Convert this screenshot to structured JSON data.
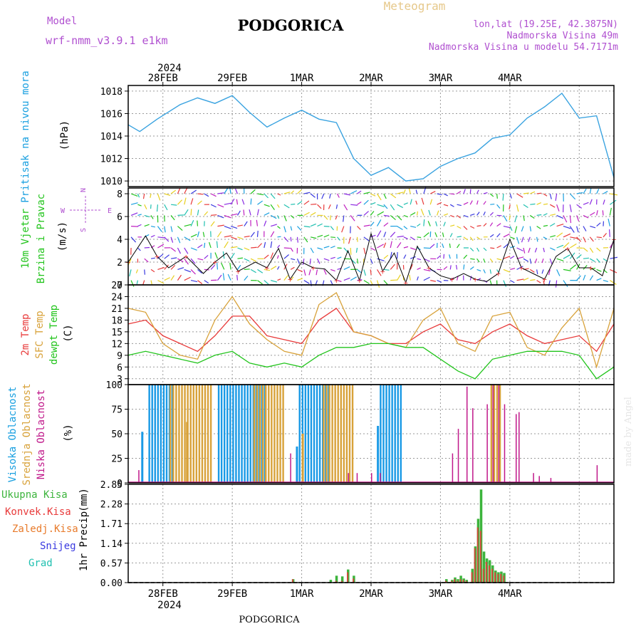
{
  "header": {
    "model_label": "Model",
    "model_name": "wrf-nmm_v3.9.1  e1km",
    "title": "PODGORICA",
    "meteogram_label": "Meteogram",
    "lonlat": "lon,lat (19.25E, 42.3875N)",
    "elevation": "Nadmorska Visina 49m",
    "model_elevation": "Nadmorska Visina u modelu 54.7171m",
    "year": "2024",
    "footer_location": "PODGORICA",
    "watermark": "made by Angel"
  },
  "colors": {
    "pressure": "#3aa3e0",
    "temp2m": "#e83a3a",
    "sfc_temp": "#d8a23a",
    "dewpoint": "#22c41c",
    "high_cloud": "#1a9ae6",
    "mid_cloud": "#d8a23a",
    "low_cloud": "#c0188a",
    "total_precip": "#3cb43c",
    "conv_precip": "#e83a3a",
    "frozen_precip": "#e87a2a",
    "snow": "#3a3ae0",
    "graupel": "#20c0b0",
    "label_purple": "#b050d0",
    "label_cyan": "#1aa0e0",
    "label_green": "#22c41c",
    "label_red": "#e83a3a",
    "label_orange": "#d8a23a",
    "label_magenta": "#c0188a",
    "meteogram_color": "#e6c88a"
  },
  "chart_data": [
    {
      "type": "line",
      "panel": "pressure",
      "ylabel": "Pritisak na nivou mora",
      "unit": "(hPa)",
      "ylim": [
        1009.5,
        1018.5
      ],
      "yticks": [
        1010,
        1012,
        1014,
        1016,
        1018
      ],
      "x_hours": [
        0,
        4,
        10,
        18,
        24,
        30,
        36,
        42,
        48,
        54,
        60,
        66,
        72,
        78,
        84,
        90,
        96,
        102,
        108,
        114,
        120,
        126,
        132,
        138,
        144,
        150,
        156,
        162,
        168
      ],
      "series": [
        {
          "name": "Pritisak na nivou mora",
          "values": [
            1015.0,
            1014.4,
            1015.5,
            1016.8,
            1017.4,
            1016.9,
            1017.6,
            1016.1,
            1014.8,
            1015.6,
            1016.3,
            1015.5,
            1015.2,
            1012.0,
            1010.5,
            1011.2,
            1010.0,
            1010.2,
            1011.3,
            1012.0,
            1012.5,
            1013.8,
            1014.1,
            1015.6,
            1016.6,
            1017.8,
            1015.6,
            1015.8,
            1010.3
          ]
        }
      ]
    },
    {
      "type": "line",
      "panel": "wind",
      "ylabel": "10m Vjetar Brzina i Pravac",
      "unit": "(m/s)",
      "ylim": [
        0,
        8.5
      ],
      "yticks": [
        0,
        2,
        4,
        6,
        8
      ],
      "compass": {
        "north": "N",
        "south": "S",
        "east": "E",
        "west": "W"
      },
      "x_hours": [
        0,
        6,
        10,
        14,
        20,
        26,
        30,
        34,
        38,
        44,
        48,
        52,
        56,
        60,
        64,
        68,
        72,
        76,
        80,
        84,
        88,
        92,
        96,
        100,
        104,
        108,
        112,
        116,
        120,
        124,
        128,
        132,
        136,
        140,
        144,
        148,
        152,
        156,
        160,
        164,
        168
      ],
      "series": [
        {
          "name": "10m Vjetar",
          "values": [
            2.0,
            4.3,
            2.5,
            1.5,
            2.5,
            1.0,
            2.0,
            2.8,
            1.2,
            2.0,
            1.5,
            3.2,
            0.5,
            2.0,
            1.5,
            1.4,
            0.4,
            3.0,
            0.4,
            4.5,
            1.2,
            2.8,
            0.2,
            3.4,
            1.5,
            0.8,
            0.5,
            1.0,
            0.5,
            0.3,
            1.0,
            4.0,
            1.5,
            1.0,
            0.5,
            2.5,
            3.2,
            1.5,
            1.5,
            0.8,
            4.0
          ]
        }
      ]
    },
    {
      "type": "line",
      "panel": "temperature",
      "ylabels": [
        "2m Temp",
        "SFC Temp",
        "dewpt Temp"
      ],
      "unit": "(C)",
      "ylim": [
        1.5,
        27
      ],
      "yticks": [
        3,
        6,
        9,
        12,
        15,
        18,
        21,
        24,
        27
      ],
      "x_hours": [
        0,
        6,
        12,
        18,
        24,
        30,
        36,
        42,
        48,
        54,
        60,
        66,
        72,
        78,
        84,
        90,
        96,
        102,
        108,
        114,
        120,
        126,
        132,
        138,
        144,
        150,
        156,
        162,
        168
      ],
      "series": [
        {
          "name": "2m Temp",
          "values": [
            17,
            18,
            14,
            12,
            10,
            14,
            19,
            19,
            14,
            13,
            12,
            18,
            21,
            15,
            14,
            12,
            12,
            15,
            17,
            13,
            12,
            15,
            17,
            14,
            12,
            13,
            14,
            10,
            17
          ]
        },
        {
          "name": "SFC Temp",
          "values": [
            21,
            20,
            12,
            9,
            8,
            18,
            24,
            17,
            13,
            10,
            9,
            22,
            25,
            15,
            14,
            12,
            11,
            18,
            21,
            12,
            10,
            19,
            20,
            11,
            9,
            16,
            21,
            6,
            21
          ]
        },
        {
          "name": "dewpt Temp",
          "values": [
            9,
            10,
            9,
            8,
            7,
            9,
            10,
            7,
            6,
            7,
            6,
            9,
            11,
            11,
            12,
            12,
            11,
            11,
            8,
            5,
            3,
            8,
            9,
            10,
            10,
            10,
            9,
            3,
            6
          ]
        }
      ]
    },
    {
      "type": "bar",
      "panel": "clouds",
      "ylabels": [
        "Visoka Oblacnost",
        "Srednja Oblacnost",
        "Niska Oblacnost"
      ],
      "unit": "(%)",
      "ylim": [
        0,
        100
      ],
      "yticks": [
        0,
        25,
        50,
        75,
        100
      ],
      "high_blocks": [
        {
          "start": 7,
          "end": 15,
          "value": 100
        },
        {
          "start": 31,
          "end": 47,
          "value": 100
        },
        {
          "start": 59,
          "end": 69,
          "value": 100
        },
        {
          "start": 87,
          "end": 94,
          "value": 100
        }
      ],
      "mid_blocks": [
        {
          "start": 14,
          "end": 28,
          "value": 100
        },
        {
          "start": 43,
          "end": 53,
          "value": 100
        },
        {
          "start": 67,
          "end": 77,
          "value": 100
        },
        {
          "start": 125,
          "end": 128,
          "value": 100
        }
      ],
      "high_bars": [
        {
          "x": 4.5,
          "value": 52
        },
        {
          "x": 58,
          "value": 37
        },
        {
          "x": 86,
          "value": 58
        }
      ],
      "mid_bars": [
        {
          "x": 20,
          "value": 62
        },
        {
          "x": 60,
          "value": 50
        }
      ],
      "low_bars": [
        {
          "x": 3.5,
          "value": 13
        },
        {
          "x": 56,
          "value": 30
        },
        {
          "x": 76,
          "value": 10
        },
        {
          "x": 79,
          "value": 10
        },
        {
          "x": 84,
          "value": 10
        },
        {
          "x": 87,
          "value": 10
        },
        {
          "x": 112,
          "value": 30
        },
        {
          "x": 114,
          "value": 55
        },
        {
          "x": 117,
          "value": 98
        },
        {
          "x": 119,
          "value": 76
        },
        {
          "x": 124,
          "value": 80
        },
        {
          "x": 126,
          "value": 100
        },
        {
          "x": 128,
          "value": 100
        },
        {
          "x": 130,
          "value": 80
        },
        {
          "x": 134,
          "value": 70
        },
        {
          "x": 135,
          "value": 72
        },
        {
          "x": 140,
          "value": 10
        },
        {
          "x": 142,
          "value": 7
        },
        {
          "x": 146,
          "value": 5
        },
        {
          "x": 162,
          "value": 18
        }
      ]
    },
    {
      "type": "bar",
      "panel": "precipitation",
      "ylabel": "1hr Precip",
      "unit": "(mm)",
      "ylim": [
        0,
        2.85
      ],
      "yticks": [
        0,
        0.57,
        1.14,
        1.71,
        2.28,
        2.85
      ],
      "legend": [
        "Ukupna  Kisa",
        "Konvek.Kisa",
        "Zaledj.Kisa",
        "Snijeg",
        "Grad"
      ],
      "bars": [
        {
          "x": 57,
          "total": 0.1,
          "conv": 0.1
        },
        {
          "x": 70,
          "total": 0.08,
          "conv": 0.0
        },
        {
          "x": 72,
          "total": 0.2,
          "conv": 0.05
        },
        {
          "x": 74,
          "total": 0.18,
          "conv": 0.05
        },
        {
          "x": 76,
          "total": 0.38,
          "conv": 0.3
        },
        {
          "x": 78,
          "total": 0.2,
          "conv": 0.12
        },
        {
          "x": 110,
          "total": 0.1,
          "conv": 0.05
        },
        {
          "x": 112,
          "total": 0.08,
          "conv": 0.05
        },
        {
          "x": 113,
          "total": 0.15,
          "conv": 0.1
        },
        {
          "x": 114,
          "total": 0.1,
          "conv": 0.05
        },
        {
          "x": 115,
          "total": 0.2,
          "conv": 0.1
        },
        {
          "x": 116,
          "total": 0.12,
          "conv": 0.08
        },
        {
          "x": 117,
          "total": 0.08,
          "conv": 0.05
        },
        {
          "x": 119,
          "total": 0.4,
          "conv": 0.3
        },
        {
          "x": 120,
          "total": 1.05,
          "conv": 1.0
        },
        {
          "x": 121,
          "total": 1.85,
          "conv": 1.6
        },
        {
          "x": 122,
          "total": 2.7,
          "conv": 1.5
        },
        {
          "x": 123,
          "total": 0.9,
          "conv": 0.4
        },
        {
          "x": 124,
          "total": 0.7,
          "conv": 0.6
        },
        {
          "x": 125,
          "total": 0.65,
          "conv": 0.5
        },
        {
          "x": 126,
          "total": 0.5,
          "conv": 0.4
        },
        {
          "x": 127,
          "total": 0.35,
          "conv": 0.3
        },
        {
          "x": 128,
          "total": 0.3,
          "conv": 0.25
        },
        {
          "x": 129,
          "total": 0.32,
          "conv": 0.25
        },
        {
          "x": 130,
          "total": 0.28,
          "conv": 0.2
        }
      ]
    }
  ],
  "time_axis": {
    "x_range_hours": [
      0,
      168
    ],
    "day_ticks": [
      {
        "hour": 12,
        "label": "28FEB"
      },
      {
        "hour": 36,
        "label": "29FEB"
      },
      {
        "hour": 60,
        "label": "1MAR"
      },
      {
        "hour": 84,
        "label": "2MAR"
      },
      {
        "hour": 108,
        "label": "3MAR"
      },
      {
        "hour": 132,
        "label": "4MAR"
      }
    ],
    "grid_hours": [
      12,
      36,
      60,
      84,
      108,
      132,
      156
    ]
  }
}
